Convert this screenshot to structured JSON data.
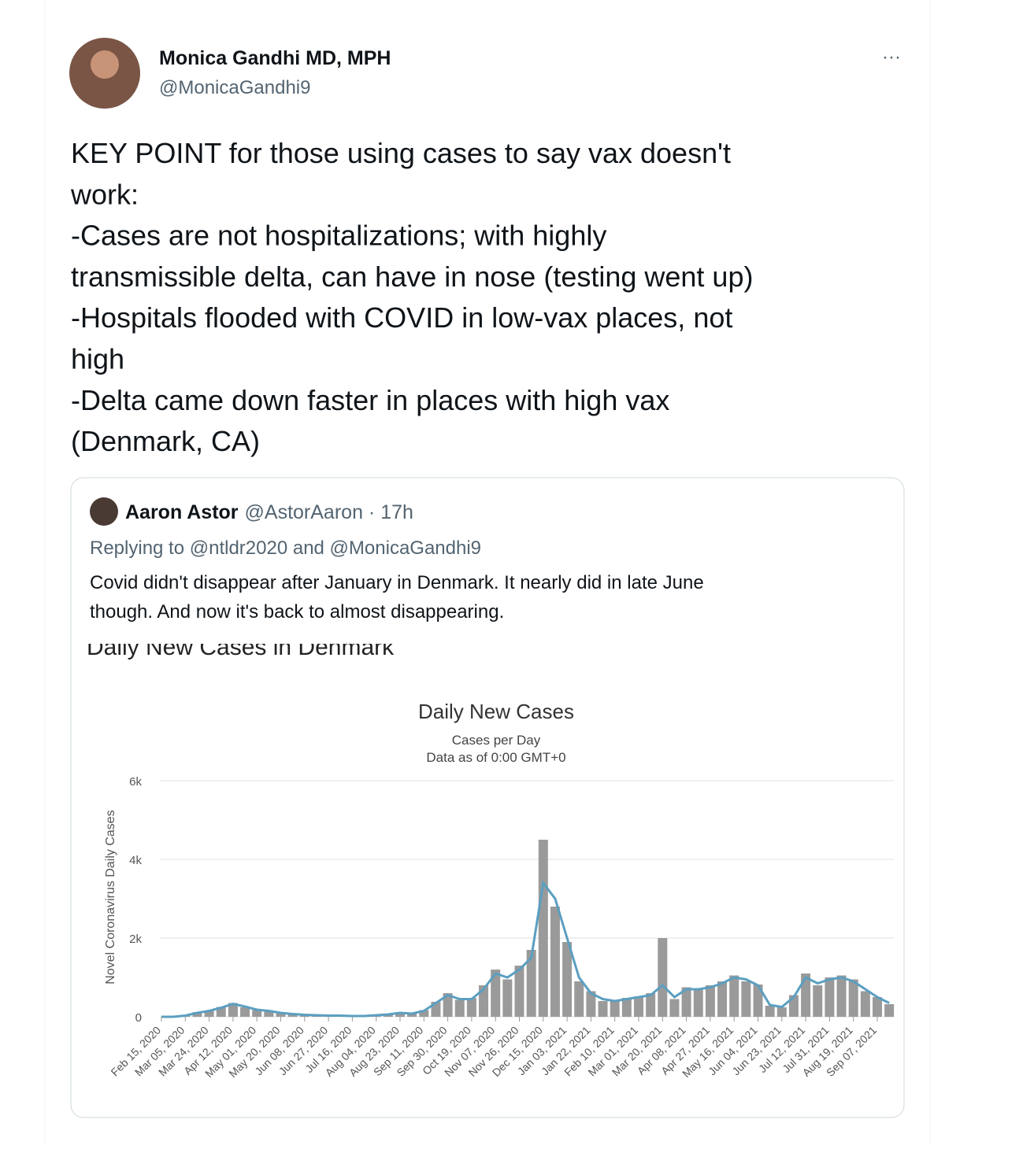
{
  "tweet": {
    "name": "Monica Gandhi MD, MPH",
    "handle": "@MonicaGandhi9",
    "menu": "···",
    "lines": [
      "KEY POINT for those using cases to say vax doesn't",
      "work:",
      "-Cases are not hospitalizations; with highly",
      "transmissible delta, can have in nose (testing went up)",
      "-Hospitals flooded with COVID in low-vax places, not",
      "high",
      "-Delta came down faster in places with high vax",
      "(Denmark, CA)"
    ]
  },
  "quote": {
    "name": "Aaron Astor",
    "meta": "@AstorAaron · 17h",
    "reply": "Replying to @ntldr2020 and @MonicaGandhi9",
    "lines": [
      "Covid didn't disappear after January in Denmark. It nearly did in late June",
      "though. And now it's back to almost disappearing."
    ],
    "cropped_heading": "Daily New Cases in Denmark"
  },
  "chart_data": {
    "type": "bar",
    "title": "Daily New Cases",
    "subtitle": [
      "Cases per Day",
      "Data as of 0:00 GMT+0"
    ],
    "y_label": "Novel Coronavirus Daily Cases",
    "categories": [
      "Feb 15, 2020",
      null,
      "Mar 05, 2020",
      null,
      "Mar 24, 2020",
      null,
      "Apr 12, 2020",
      null,
      "May 01, 2020",
      null,
      "May 20, 2020",
      null,
      "Jun 08, 2020",
      null,
      "Jun 27, 2020",
      null,
      "Jul 16, 2020",
      null,
      "Aug 04, 2020",
      null,
      "Aug 23, 2020",
      null,
      "Sep 11, 2020",
      null,
      "Sep 30, 2020",
      null,
      "Oct 19, 2020",
      null,
      "Nov 07, 2020",
      null,
      "Nov 26, 2020",
      null,
      "Dec 15, 2020",
      null,
      "Jan 03, 2021",
      null,
      "Jan 22, 2021",
      null,
      "Feb 10, 2021",
      null,
      "Mar 01, 2021",
      null,
      "Mar 20, 2021",
      null,
      "Apr 08, 2021",
      null,
      "Apr 27, 2021",
      null,
      "May 16, 2021",
      null,
      "Jun 04, 2021",
      null,
      "Jun 23, 2021",
      null,
      "Jul 12, 2021",
      null,
      "Jul 31, 2021",
      null,
      "Aug 19, 2021",
      null,
      "Sep 07, 2021",
      null
    ],
    "series": [
      {
        "color": "#9a9a9a",
        "values": [
          0,
          0,
          40,
          120,
          160,
          250,
          350,
          240,
          170,
          140,
          90,
          60,
          50,
          40,
          30,
          30,
          20,
          25,
          50,
          70,
          120,
          80,
          170,
          380,
          600,
          430,
          480,
          800,
          1200,
          950,
          1300,
          1700,
          4500,
          2800,
          1900,
          900,
          650,
          400,
          420,
          480,
          520,
          600,
          2000,
          450,
          750,
          720,
          800,
          900,
          1050,
          900,
          820,
          280,
          240,
          550,
          1100,
          800,
          1000,
          1050,
          950,
          650,
          500,
          320
        ]
      },
      {
        "color": "#5b9fc0",
        "values": [
          0,
          0,
          30,
          100,
          150,
          230,
          330,
          260,
          180,
          150,
          100,
          70,
          50,
          40,
          30,
          30,
          20,
          20,
          40,
          60,
          100,
          80,
          150,
          350,
          550,
          450,
          450,
          700,
          1100,
          1000,
          1200,
          1500,
          3400,
          3000,
          2000,
          1000,
          600,
          450,
          400,
          450,
          500,
          550,
          800,
          500,
          700,
          700,
          750,
          850,
          1000,
          950,
          800,
          300,
          250,
          500,
          1000,
          850,
          950,
          1000,
          900,
          700,
          500,
          350
        ]
      }
    ],
    "ylim": [
      0,
      6000
    ],
    "yticks": [
      0,
      {
        "value": 2000,
        "label": "2k"
      },
      {
        "value": 4000,
        "label": "4k"
      },
      {
        "value": 6000,
        "label": "6k"
      }
    ],
    "grid": true
  }
}
